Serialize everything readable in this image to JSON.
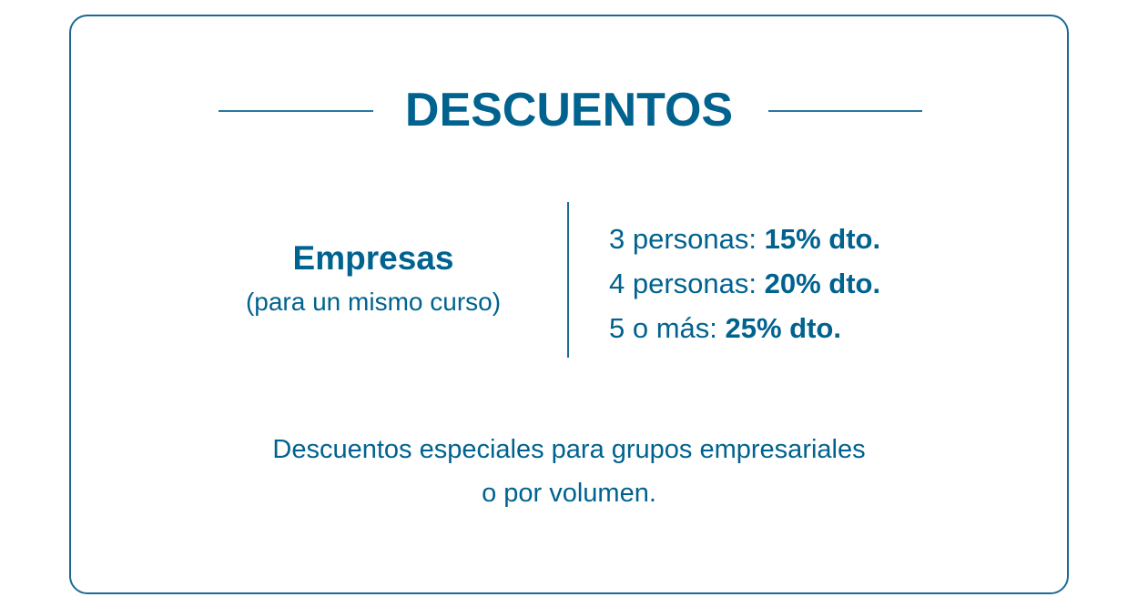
{
  "title": "DESCUENTOS",
  "group": {
    "label": "Empresas",
    "note": "(para un mismo curso)"
  },
  "tiers": [
    {
      "label": "3 personas:",
      "discount": "15% dto."
    },
    {
      "label": "4 personas:",
      "discount": "20% dto."
    },
    {
      "label": "5 o más:",
      "discount": "25% dto."
    }
  ],
  "footer": {
    "line1": "Descuentos especiales para grupos empresariales",
    "line2": "o por volumen."
  },
  "colors": {
    "accent": "#00628f"
  }
}
